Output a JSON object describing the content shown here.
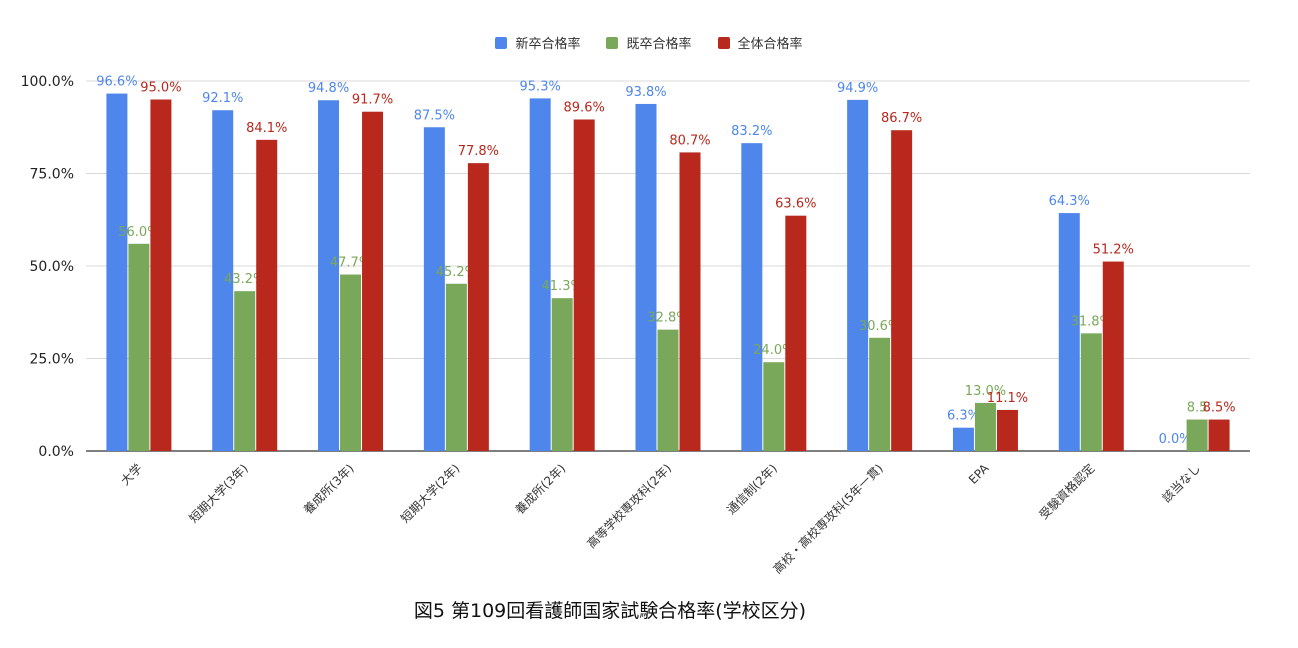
{
  "chart_data": {
    "type": "bar",
    "categories": [
      "大学",
      "短期大学(3年)",
      "養成所(3年)",
      "短期大学(2年)",
      "養成所(2年)",
      "高等学校専攻科(2年)",
      "通信制(2年)",
      "高校・高校専攻科(5年一貫)",
      "EPA",
      "受験資格認定",
      "該当なし"
    ],
    "series": [
      {
        "name": "新卒合格率",
        "color": "#4f86ec",
        "values": [
          96.6,
          92.1,
          94.8,
          87.5,
          95.3,
          93.8,
          83.2,
          94.9,
          6.3,
          64.3,
          0.0
        ],
        "labels": [
          "96.6%",
          "92.1%",
          "94.8%",
          "87.5%",
          "95.3%",
          "93.8%",
          "83.2%",
          "94.9%",
          "6.3%",
          "64.3%",
          "0.0%"
        ]
      },
      {
        "name": "既卒合格率",
        "color": "#79a85a",
        "values": [
          56.0,
          43.2,
          47.7,
          45.2,
          41.3,
          32.8,
          24.0,
          30.6,
          13.0,
          31.8,
          8.5
        ],
        "labels": [
          "56.0%",
          "43.2%",
          "47.7%",
          "45.2%",
          "41.3%",
          "32.8%",
          "24.0%",
          "30.6%",
          "13.0%",
          "31.8%",
          "8.5"
        ]
      },
      {
        "name": "全体合格率",
        "color": "#b8281d",
        "values": [
          95.0,
          84.1,
          91.7,
          77.8,
          89.6,
          80.7,
          63.6,
          86.7,
          11.1,
          51.2,
          8.5
        ],
        "labels": [
          "95.0%",
          "84.1%",
          "91.7%",
          "77.8%",
          "89.6%",
          "80.7%",
          "63.6%",
          "86.7%",
          "11.1%",
          "51.2%",
          "8.5%"
        ]
      }
    ],
    "ylim": [
      0,
      100
    ],
    "yticks": [
      "0.0%",
      "25.0%",
      "50.0%",
      "75.0%",
      "100.0%"
    ],
    "ytick_values": [
      0,
      25,
      50,
      75,
      100
    ],
    "grid": true,
    "legend_position": "top-center"
  },
  "caption": "図5 第109回看護師国家試験合格率(学校区分)"
}
